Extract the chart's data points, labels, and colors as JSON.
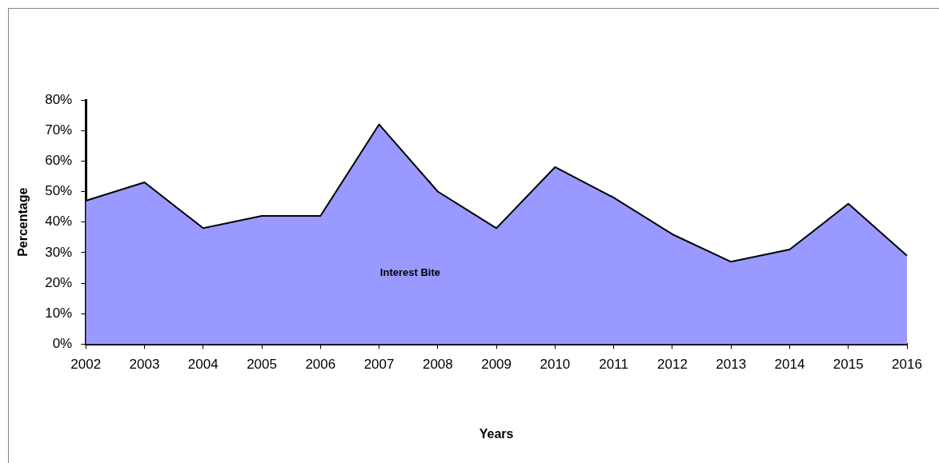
{
  "chart_data": {
    "type": "area",
    "xlabel": "Years",
    "ylabel": "Percentage",
    "categories": [
      "2002",
      "2003",
      "2004",
      "2005",
      "2006",
      "2007",
      "2008",
      "2009",
      "2010",
      "2011",
      "2012",
      "2013",
      "2014",
      "2015",
      "2016"
    ],
    "series": [
      {
        "name": "Interest Bite",
        "color": "#9999ff",
        "values": [
          47,
          53,
          38,
          42,
          42,
          72,
          50,
          38,
          58,
          48,
          36,
          27,
          31,
          46,
          29
        ]
      }
    ],
    "ylim": [
      0,
      80
    ],
    "yticks": [
      {
        "value": 0,
        "label": "0%"
      },
      {
        "value": 10,
        "label": "10%"
      },
      {
        "value": 20,
        "label": "20%"
      },
      {
        "value": 30,
        "label": "30%"
      },
      {
        "value": 40,
        "label": "40%"
      },
      {
        "value": 50,
        "label": "50%"
      },
      {
        "value": 60,
        "label": "60%"
      },
      {
        "value": 70,
        "label": "70%"
      },
      {
        "value": 80,
        "label": "80%"
      }
    ]
  }
}
